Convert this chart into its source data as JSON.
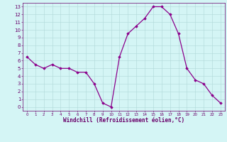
{
  "x": [
    0,
    1,
    2,
    3,
    4,
    5,
    6,
    7,
    8,
    9,
    10,
    11,
    12,
    13,
    14,
    15,
    16,
    17,
    18,
    19,
    20,
    21,
    22,
    23
  ],
  "y": [
    6.5,
    5.5,
    5.0,
    5.5,
    5.0,
    5.0,
    4.5,
    4.5,
    3.0,
    0.5,
    0.0,
    6.5,
    9.5,
    10.5,
    11.5,
    13.0,
    13.0,
    12.0,
    9.5,
    5.0,
    3.5,
    3.0,
    1.5,
    0.5
  ],
  "line_color": "#8B008B",
  "marker": "D",
  "markersize": 1.8,
  "linewidth": 0.9,
  "bg_color": "#d4f5f5",
  "grid_color": "#b0d8d8",
  "xlabel": "Windchill (Refroidissement éolien,°C)",
  "xlim": [
    -0.5,
    23.5
  ],
  "ylim": [
    -0.5,
    13.5
  ],
  "xticks": [
    0,
    1,
    2,
    3,
    4,
    5,
    6,
    7,
    8,
    9,
    10,
    11,
    12,
    13,
    14,
    15,
    16,
    17,
    18,
    19,
    20,
    21,
    22,
    23
  ],
  "yticks": [
    0,
    1,
    2,
    3,
    4,
    5,
    6,
    7,
    8,
    9,
    10,
    11,
    12,
    13
  ],
  "xtick_fontsize": 4.0,
  "ytick_fontsize": 5.0,
  "xlabel_fontsize": 5.5,
  "tick_color": "#6a006a",
  "spine_color": "#6a006a"
}
